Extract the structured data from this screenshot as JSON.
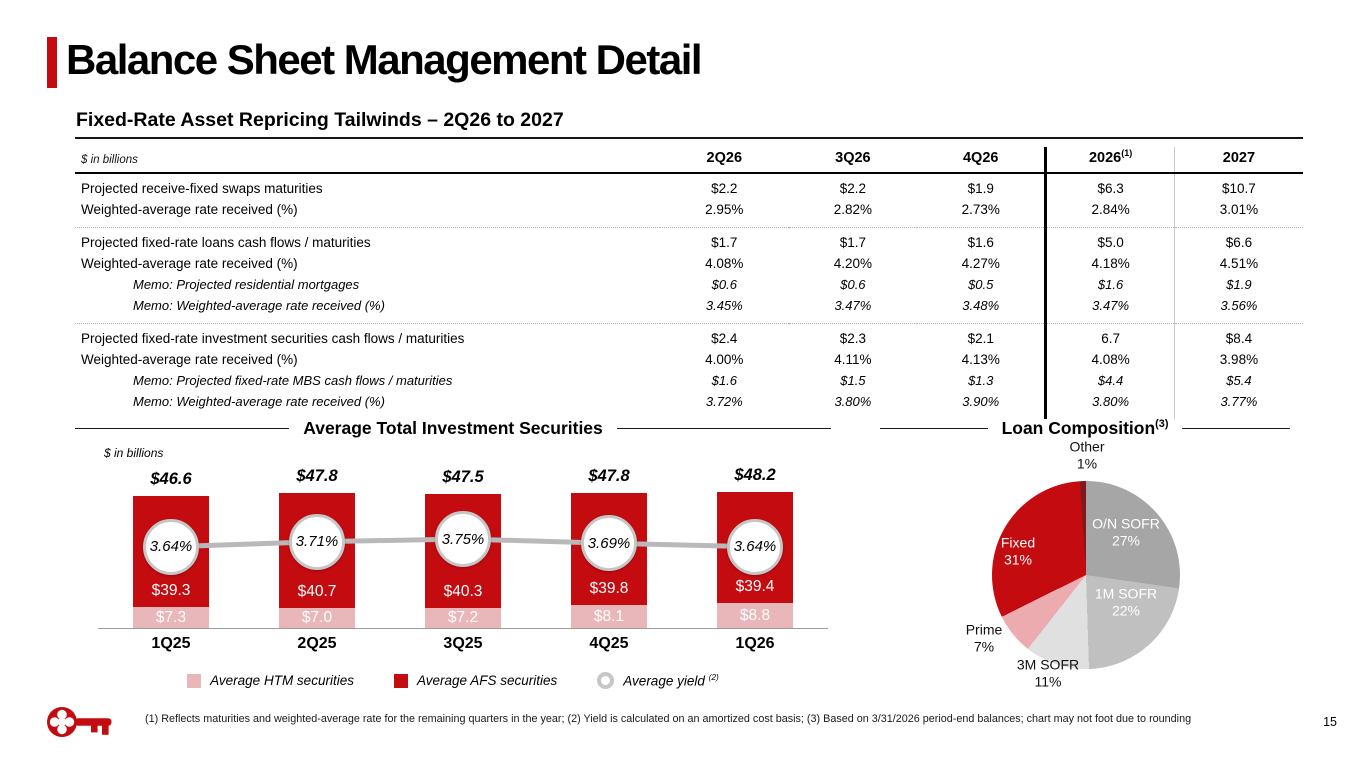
{
  "slide": {
    "title": "Balance Sheet Management Detail",
    "subtitle": "Fixed-Rate Asset Repricing Tailwinds – 2Q26 to 2027",
    "page_number": "15",
    "footnote": "(1) Reflects maturities and weighted-average rate for the remaining quarters in the year; (2) Yield is calculated on an amortized cost basis; (3) Based on 3/31/2026 period-end balances; chart may not foot due to rounding",
    "colors": {
      "brand_red": "#c30b10",
      "htm_pink": "#e9b7ba",
      "dark_red_other": "#7c1b1e",
      "yield_ring_gray": "#c6c6c6"
    }
  },
  "table": {
    "unit_label": "$ in billions",
    "columns": [
      {
        "label": "2Q26",
        "sup": ""
      },
      {
        "label": "3Q26",
        "sup": ""
      },
      {
        "label": "4Q26",
        "sup": ""
      },
      {
        "label": "2026",
        "sup": "(1)"
      },
      {
        "label": "2027",
        "sup": ""
      }
    ],
    "sections": [
      {
        "rows": [
          {
            "label": "Projected receive-fixed swaps maturities",
            "memo": false,
            "values": [
              "$2.2",
              "$2.2",
              "$1.9",
              "$6.3",
              "$10.7"
            ]
          },
          {
            "label": "Weighted-average rate received (%)",
            "memo": false,
            "values": [
              "2.95%",
              "2.82%",
              "2.73%",
              "2.84%",
              "3.01%"
            ]
          }
        ]
      },
      {
        "rows": [
          {
            "label": "Projected fixed-rate loans cash flows / maturities",
            "memo": false,
            "values": [
              "$1.7",
              "$1.7",
              "$1.6",
              "$5.0",
              "$6.6"
            ]
          },
          {
            "label": "Weighted-average rate received (%)",
            "memo": false,
            "values": [
              "4.08%",
              "4.20%",
              "4.27%",
              "4.18%",
              "4.51%"
            ]
          },
          {
            "label": "Memo: Projected residential mortgages",
            "memo": true,
            "values": [
              "$0.6",
              "$0.6",
              "$0.5",
              "$1.6",
              "$1.9"
            ]
          },
          {
            "label": "Memo: Weighted-average rate received (%)",
            "memo": true,
            "values": [
              "3.45%",
              "3.47%",
              "3.48%",
              "3.47%",
              "3.56%"
            ]
          }
        ]
      },
      {
        "rows": [
          {
            "label": "Projected fixed-rate investment securities cash flows / maturities",
            "memo": false,
            "values": [
              "$2.4",
              "$2.3",
              "$2.1",
              "6.7",
              "$8.4"
            ]
          },
          {
            "label": "Weighted-average rate received (%)",
            "memo": false,
            "values": [
              "4.00%",
              "4.11%",
              "4.13%",
              "4.08%",
              "3.98%"
            ]
          },
          {
            "label": "Memo: Projected fixed-rate MBS cash flows / maturities",
            "memo": true,
            "values": [
              "$1.6",
              "$1.5",
              "$1.3",
              "$4.4",
              "$5.4"
            ]
          },
          {
            "label": "Memo: Weighted-average rate received (%)",
            "memo": true,
            "values": [
              "3.72%",
              "3.80%",
              "3.90%",
              "3.80%",
              "3.77%"
            ]
          }
        ]
      }
    ]
  },
  "chart_data": [
    {
      "type": "bar",
      "title": "Average Total Investment Securities",
      "unit_label": "$ in billions",
      "categories": [
        "1Q25",
        "2Q25",
        "3Q25",
        "4Q25",
        "1Q26"
      ],
      "series": [
        {
          "name": "Average HTM securities",
          "role": "stacked-bottom",
          "color": "#e9b7ba",
          "values": [
            7.3,
            7.0,
            7.2,
            8.1,
            8.8
          ],
          "labels": [
            "$7.3",
            "$7.0",
            "$7.2",
            "$8.1",
            "$8.8"
          ]
        },
        {
          "name": "Average AFS securities",
          "role": "stacked-top",
          "color": "#c30b10",
          "values": [
            39.3,
            40.7,
            40.3,
            39.8,
            39.4
          ],
          "labels": [
            "$39.3",
            "$40.7",
            "$40.3",
            "$39.8",
            "$39.4"
          ]
        },
        {
          "name": "Average yield",
          "sup": "(2)",
          "role": "line-with-circle-markers",
          "values": [
            3.64,
            3.71,
            3.75,
            3.69,
            3.64
          ],
          "labels": [
            "3.64%",
            "3.71%",
            "3.75%",
            "3.69%",
            "3.64%"
          ]
        }
      ],
      "totals": {
        "values": [
          46.6,
          47.8,
          47.5,
          47.8,
          48.2
        ],
        "labels": [
          "$46.6",
          "$47.8",
          "$47.5",
          "$47.8",
          "$48.2"
        ]
      },
      "ylim": [
        0,
        50
      ],
      "grid": false,
      "legend_position": "bottom"
    },
    {
      "type": "pie",
      "title": "Loan Composition",
      "title_sup": "(3)",
      "start_angle_deg": 0,
      "clockwise_from_top": true,
      "slices": [
        {
          "label": "O/N SOFR",
          "pct": 27,
          "display": "27%",
          "color": "#a6a6a6",
          "label_placement": "inside"
        },
        {
          "label": "1M SOFR",
          "pct": 22,
          "display": "22%",
          "color": "#c0c0c0",
          "label_placement": "inside"
        },
        {
          "label": "3M SOFR",
          "pct": 11,
          "display": "11%",
          "color": "#e0e0e0",
          "label_placement": "outside"
        },
        {
          "label": "Prime",
          "pct": 7,
          "display": "7%",
          "color": "#ecacaf",
          "label_placement": "outside"
        },
        {
          "label": "Fixed",
          "pct": 31,
          "display": "31%",
          "color": "#c30b10",
          "label_placement": "inside"
        },
        {
          "label": "Other",
          "pct": 1,
          "display": "1%",
          "color": "#7c1b1e",
          "label_placement": "outside"
        }
      ]
    }
  ]
}
